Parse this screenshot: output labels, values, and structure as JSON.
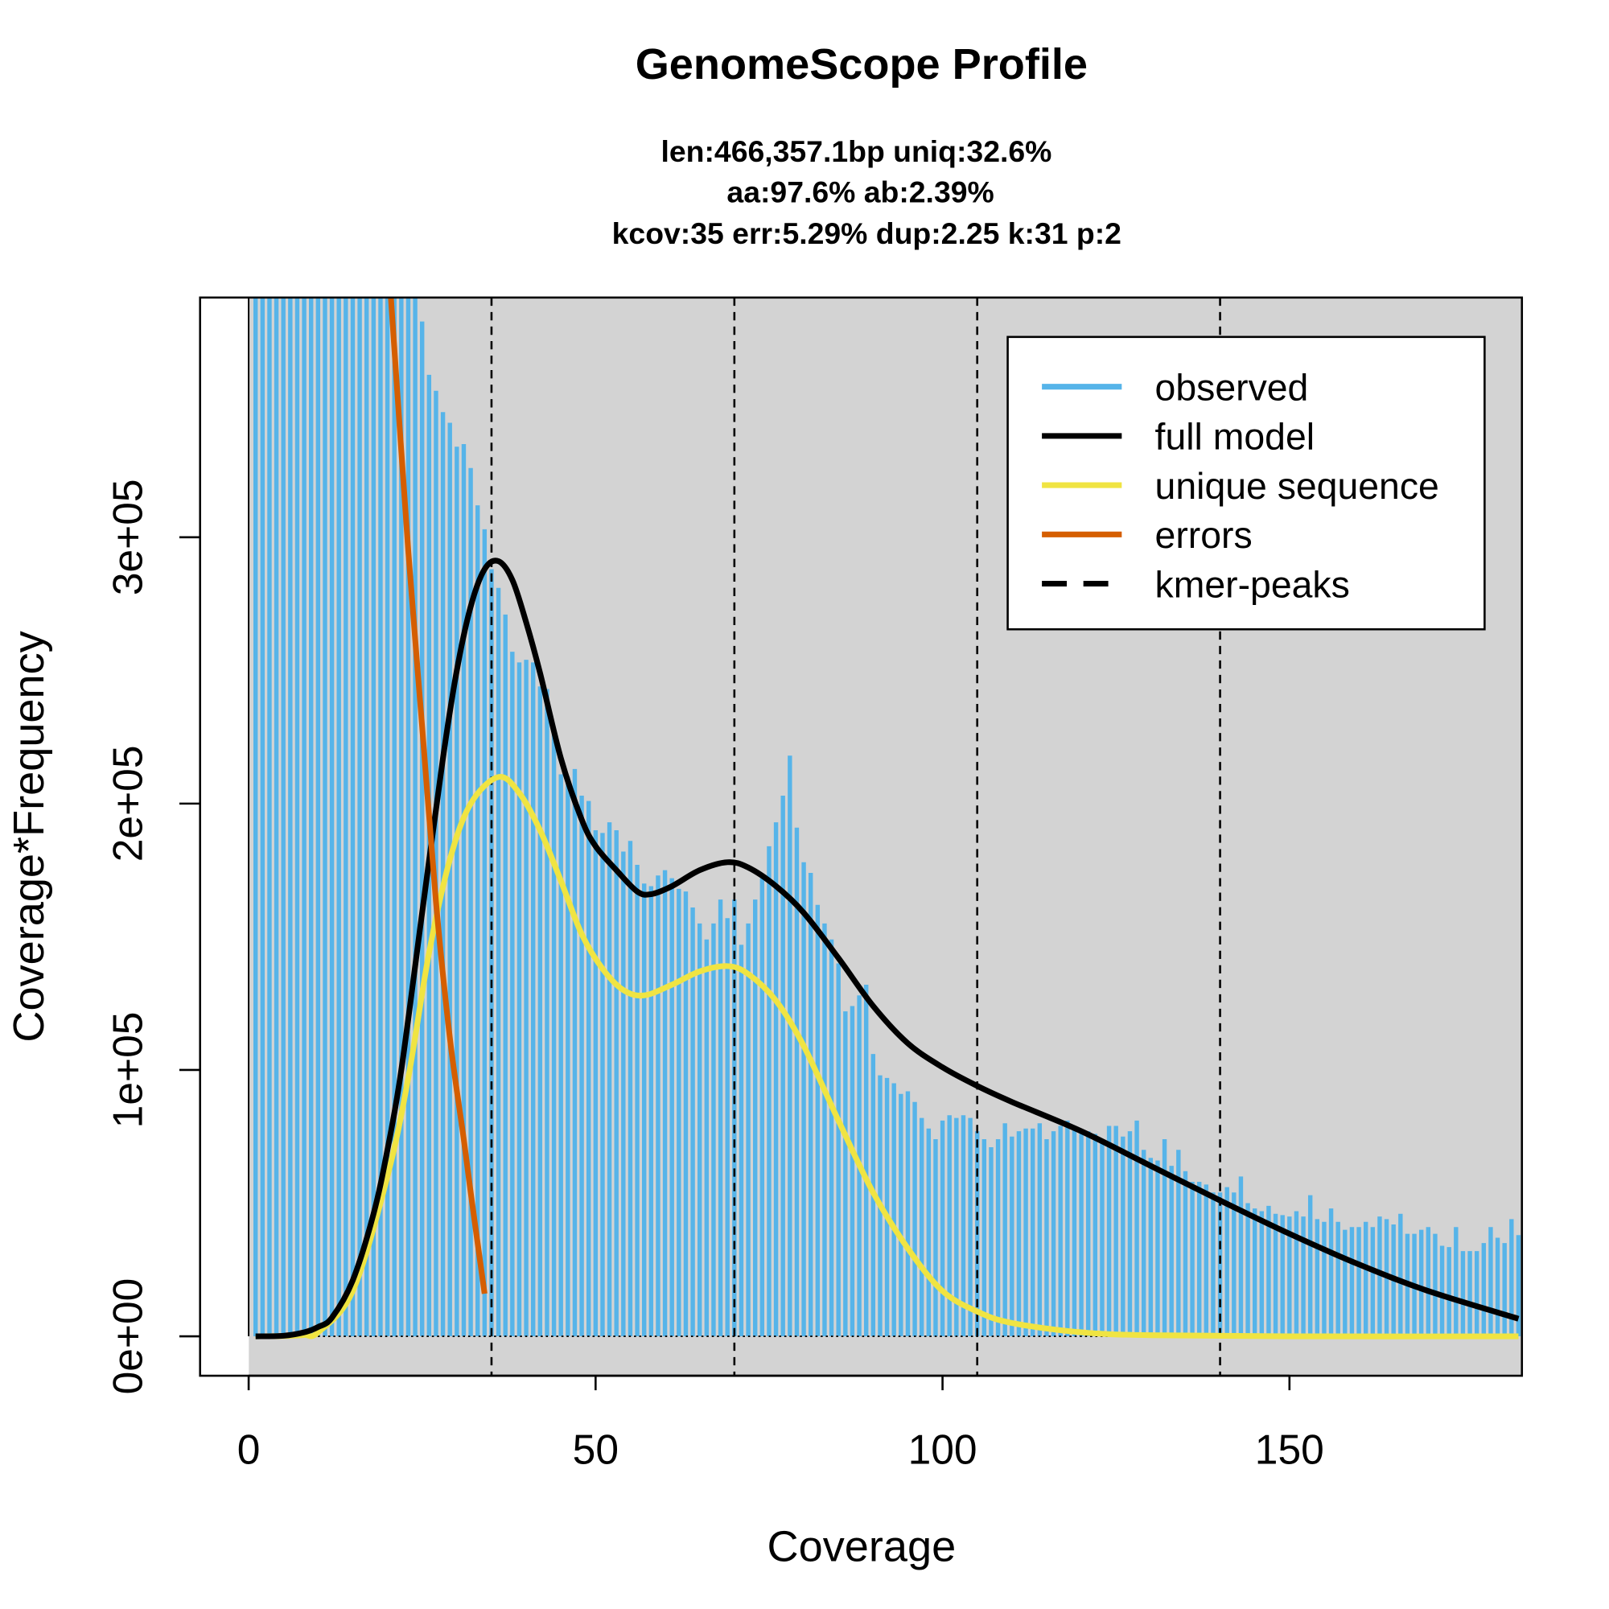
{
  "chart_data": {
    "type": "bar",
    "title": "GenomeScope Profile",
    "subtitle_lines": [
      "len:466,357.1bp uniq:32.6%",
      "aa:97.6% ab:2.39%",
      "kcov:35 err:5.29%  dup:2.25  k:31 p:2"
    ],
    "xlabel": "Coverage",
    "ylabel": "Coverage*Frequency",
    "xlim": [
      -7,
      183.5
    ],
    "ylim": [
      -14800,
      390000
    ],
    "x_ticks": [
      0,
      50,
      100,
      150
    ],
    "x_tick_labels": [
      "0",
      "50",
      "100",
      "150"
    ],
    "y_ticks": [
      0,
      100000,
      200000,
      300000
    ],
    "y_tick_labels": [
      "0e+00",
      "1e+05",
      "2e+05",
      "3e+05"
    ],
    "legend_position": "top-right",
    "legend": [
      {
        "label": "observed",
        "color": "#56B4E9",
        "style": "solid"
      },
      {
        "label": "full model",
        "color": "#000000",
        "style": "solid"
      },
      {
        "label": "unique sequence",
        "color": "#F0E442",
        "style": "solid"
      },
      {
        "label": "errors",
        "color": "#D55E00",
        "style": "solid"
      },
      {
        "label": "kmer-peaks",
        "color": "#000000",
        "style": "dashed"
      }
    ],
    "kmer_peaks": [
      35,
      70,
      105,
      140
    ],
    "observed": {
      "x_start": 1,
      "values_e5": [
        9.0,
        8.6,
        8.2,
        7.8,
        7.4,
        7.0,
        6.7,
        6.4,
        6.1,
        5.9,
        5.7,
        5.5,
        5.3,
        5.1,
        4.9,
        4.8,
        4.6,
        4.5,
        4.4,
        4.3,
        4.2,
        4.1,
        4.0,
        3.95,
        3.81,
        3.61,
        3.55,
        3.47,
        3.43,
        3.34,
        3.35,
        3.26,
        3.12,
        3.03,
        2.88,
        2.81,
        2.71,
        2.57,
        2.53,
        2.54,
        2.53,
        2.44,
        2.43,
        2.26,
        2.11,
        2.1,
        2.13,
        2.03,
        2.01,
        1.9,
        1.89,
        1.93,
        1.9,
        1.82,
        1.86,
        1.77,
        1.7,
        1.69,
        1.73,
        1.75,
        1.72,
        1.68,
        1.67,
        1.61,
        1.55,
        1.49,
        1.55,
        1.64,
        1.57,
        1.64,
        1.47,
        1.55,
        1.64,
        1.72,
        1.84,
        1.93,
        2.03,
        2.18,
        1.91,
        1.78,
        1.74,
        1.62,
        1.55,
        1.49,
        1.4,
        1.22,
        1.24,
        1.28,
        1.32,
        1.06,
        0.98,
        0.97,
        0.95,
        0.91,
        0.92,
        0.88,
        0.82,
        0.78,
        0.74,
        0.81,
        0.83,
        0.82,
        0.83,
        0.82,
        0.77,
        0.74,
        0.71,
        0.74,
        0.8,
        0.75,
        0.77,
        0.78,
        0.78,
        0.8,
        0.74,
        0.77,
        0.79,
        0.81,
        0.78,
        0.76,
        0.77,
        0.76,
        0.74,
        0.79,
        0.79,
        0.75,
        0.77,
        0.81,
        0.7,
        0.67,
        0.66,
        0.74,
        0.64,
        0.7,
        0.62,
        0.58,
        0.58,
        0.57,
        0.54,
        0.54,
        0.56,
        0.54,
        0.6,
        0.5,
        0.48,
        0.47,
        0.49,
        0.46,
        0.455,
        0.45,
        0.47,
        0.45,
        0.53,
        0.44,
        0.43,
        0.48,
        0.43,
        0.4,
        0.41,
        0.41,
        0.43,
        0.41,
        0.45,
        0.44,
        0.42,
        0.46,
        0.385,
        0.385,
        0.4,
        0.41,
        0.385,
        0.34,
        0.335,
        0.41,
        0.32,
        0.32,
        0.32,
        0.35,
        0.41,
        0.37,
        0.35,
        0.44,
        0.38
      ]
    },
    "full_model": {
      "x": [
        1,
        5,
        8,
        10,
        12,
        15,
        18,
        20,
        22,
        25,
        28,
        30,
        32,
        34,
        36,
        38,
        40,
        42,
        45,
        48,
        50,
        53,
        56,
        58,
        61,
        65,
        69,
        72,
        76,
        80,
        85,
        90,
        95,
        100,
        105,
        110,
        120,
        130,
        140,
        150,
        160,
        170,
        183
      ],
      "values_e5": [
        0,
        0.002,
        0.015,
        0.035,
        0.07,
        0.21,
        0.46,
        0.7,
        1.0,
        1.59,
        2.17,
        2.5,
        2.74,
        2.88,
        2.91,
        2.84,
        2.68,
        2.49,
        2.17,
        1.94,
        1.84,
        1.75,
        1.67,
        1.66,
        1.69,
        1.75,
        1.78,
        1.76,
        1.69,
        1.59,
        1.42,
        1.24,
        1.1,
        1.01,
        0.94,
        0.88,
        0.77,
        0.64,
        0.51,
        0.385,
        0.27,
        0.17,
        0.066
      ]
    },
    "unique_sequence": {
      "x": [
        1,
        5,
        8,
        10,
        15,
        20,
        23,
        26,
        29,
        32,
        36,
        39,
        42,
        45,
        48,
        51,
        54,
        57,
        61,
        65,
        69,
        72,
        76,
        80,
        85,
        90,
        95,
        100,
        105,
        110,
        120,
        130,
        150,
        183
      ],
      "values_e5": [
        0,
        0.001,
        0.005,
        0.015,
        0.17,
        0.6,
        0.97,
        1.44,
        1.79,
        2.0,
        2.1,
        2.04,
        1.9,
        1.71,
        1.51,
        1.38,
        1.3,
        1.28,
        1.32,
        1.37,
        1.39,
        1.36,
        1.26,
        1.09,
        0.81,
        0.54,
        0.33,
        0.17,
        0.093,
        0.05,
        0.015,
        0.004,
        0,
        0
      ]
    },
    "errors": {
      "x": [
        20.5,
        23,
        25,
        27,
        29,
        31,
        32,
        34
      ],
      "values_e5": [
        3.9,
        2.95,
        2.29,
        1.63,
        1.12,
        0.74,
        0.54,
        0.16
      ]
    }
  }
}
